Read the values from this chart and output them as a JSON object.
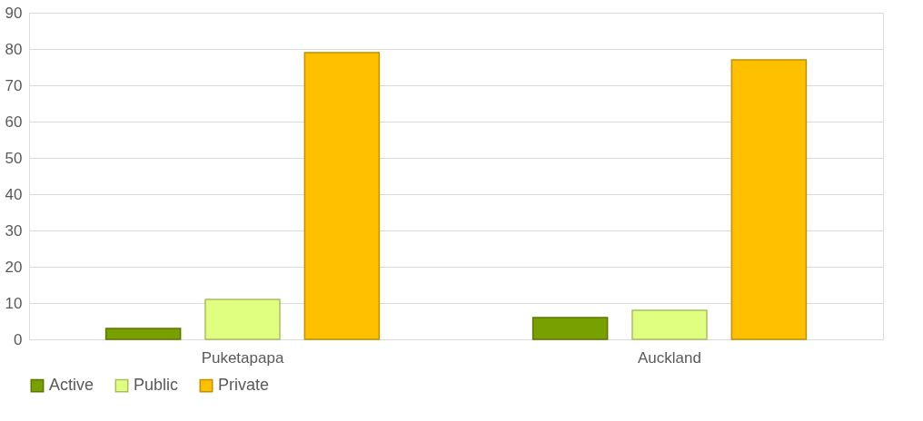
{
  "chart_data": {
    "type": "bar",
    "categories": [
      "Puketapapa",
      "Auckland"
    ],
    "series": [
      {
        "name": "Active",
        "color": "#77a000",
        "values": [
          3,
          6
        ]
      },
      {
        "name": "Public",
        "color": "#e0ff80",
        "values": [
          11,
          8
        ]
      },
      {
        "name": "Private",
        "color": "#ffc000",
        "values": [
          79,
          77
        ]
      }
    ],
    "ylim": [
      0,
      90
    ],
    "yticks": [
      0,
      10,
      20,
      30,
      40,
      50,
      60,
      70,
      80,
      90
    ],
    "grid": "y",
    "legend": "bottom"
  }
}
